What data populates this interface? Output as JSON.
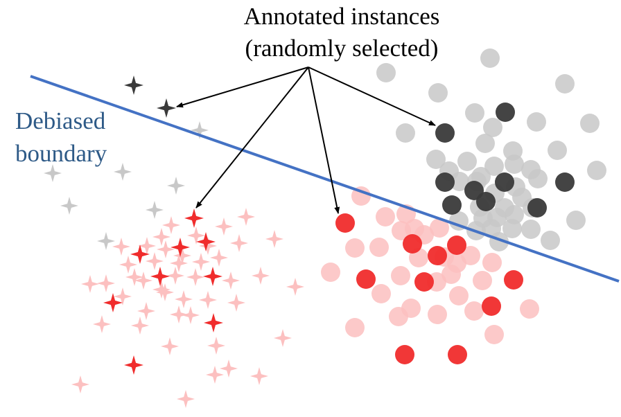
{
  "title": {
    "line1": "Annotated instances",
    "line2": "(randomly selected)"
  },
  "boundary": {
    "label_line1": "Debiased",
    "label_line2": "boundary",
    "color": "#4472c4",
    "label_color": "#2e5a87"
  },
  "colors": {
    "red_dark": "#f02c2c",
    "red_light": "#fcc0c0",
    "gray_dark": "#3a3a3a",
    "gray_light": "#c8c8c8",
    "arrow": "#000000"
  },
  "legend_shapes": {
    "star": "four-point-star",
    "circle": "circle"
  }
}
